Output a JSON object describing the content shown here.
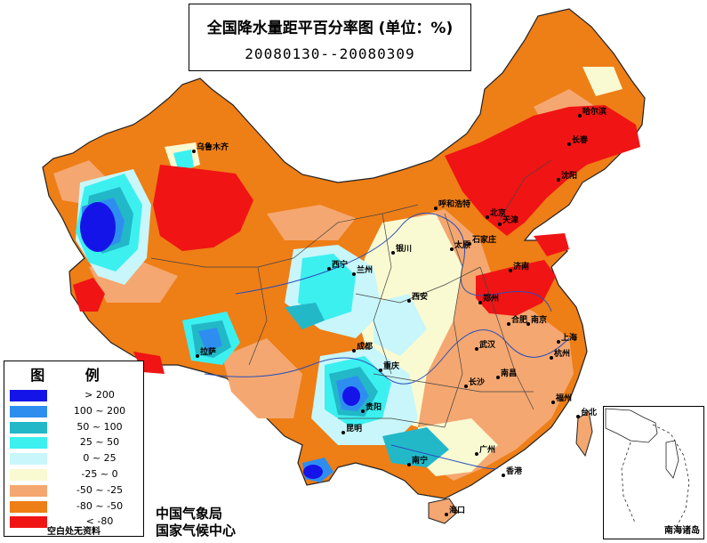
{
  "title": {
    "main": "全国降水量距平百分率图 (单位：%)",
    "period": "20080130--20080309"
  },
  "legend": {
    "title": "图 例",
    "items": [
      {
        "label": "> 200",
        "color": "#1414e8"
      },
      {
        "label": "100 ~ 200",
        "color": "#2e8ef0"
      },
      {
        "label": "50 ~ 100",
        "color": "#22b8c8"
      },
      {
        "label": "25 ~ 50",
        "color": "#3cf0f0"
      },
      {
        "label": "0 ~ 25",
        "color": "#c8f6fa"
      },
      {
        "label": "-25 ~ 0",
        "color": "#fafad2"
      },
      {
        "label": "-50 ~ -25",
        "color": "#f4a770"
      },
      {
        "label": "-80 ~ -50",
        "color": "#ee7e16"
      },
      {
        "label": "< -80",
        "color": "#f01414"
      }
    ],
    "note": "空白处无资料"
  },
  "credits": {
    "line1": "中国气象局",
    "line2": "国家气候中心"
  },
  "inset": {
    "label": "南海诸岛"
  },
  "cities": [
    {
      "name": "乌鲁木齐"
    },
    {
      "name": "拉萨"
    },
    {
      "name": "西宁"
    },
    {
      "name": "兰州"
    },
    {
      "name": "银川"
    },
    {
      "name": "呼和浩特"
    },
    {
      "name": "太原"
    },
    {
      "name": "北京"
    },
    {
      "name": "天津"
    },
    {
      "name": "石家庄"
    },
    {
      "name": "沈阳"
    },
    {
      "name": "长春"
    },
    {
      "name": "哈尔滨"
    },
    {
      "name": "济南"
    },
    {
      "name": "郑州"
    },
    {
      "name": "西安"
    },
    {
      "name": "成都"
    },
    {
      "name": "重庆"
    },
    {
      "name": "贵阳"
    },
    {
      "name": "昆明"
    },
    {
      "name": "南宁"
    },
    {
      "name": "广州"
    },
    {
      "name": "香港"
    },
    {
      "name": "海口"
    },
    {
      "name": "台北"
    },
    {
      "name": "福州"
    },
    {
      "name": "南昌"
    },
    {
      "name": "长沙"
    },
    {
      "name": "武汉"
    },
    {
      "name": "合肥"
    },
    {
      "name": "南京"
    },
    {
      "name": "上海"
    },
    {
      "name": "杭州"
    }
  ]
}
